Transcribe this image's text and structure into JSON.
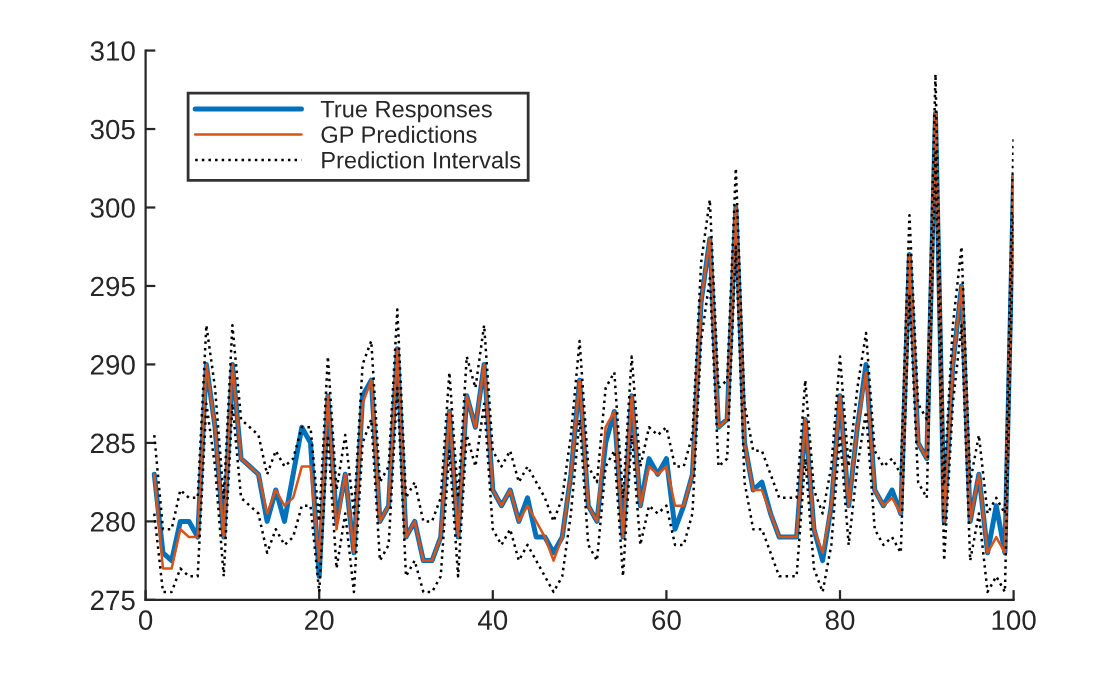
{
  "chart_data": {
    "type": "line",
    "x": [
      1,
      2,
      3,
      4,
      5,
      6,
      7,
      8,
      9,
      10,
      11,
      12,
      13,
      14,
      15,
      16,
      17,
      18,
      19,
      20,
      21,
      22,
      23,
      24,
      25,
      26,
      27,
      28,
      29,
      30,
      31,
      32,
      33,
      34,
      35,
      36,
      37,
      38,
      39,
      40,
      41,
      42,
      43,
      44,
      45,
      46,
      47,
      48,
      49,
      50,
      51,
      52,
      53,
      54,
      55,
      56,
      57,
      58,
      59,
      60,
      61,
      62,
      63,
      64,
      65,
      66,
      67,
      68,
      69,
      70,
      71,
      72,
      73,
      74,
      75,
      76,
      77,
      78,
      79,
      80,
      81,
      82,
      83,
      84,
      85,
      86,
      87,
      88,
      89,
      90,
      91,
      92,
      93,
      94,
      95,
      96,
      97,
      98,
      99,
      100
    ],
    "series": [
      {
        "name": "True Responses",
        "color": "#0072bd",
        "line_style": "solid",
        "values": [
          283,
          278,
          277.5,
          280,
          280,
          279,
          290,
          286,
          279,
          290,
          284,
          283.5,
          283,
          280,
          282,
          280,
          283,
          286,
          285,
          276.5,
          288,
          280,
          283,
          278,
          288,
          289,
          280,
          281,
          291,
          279,
          280,
          277.5,
          277.5,
          279,
          287,
          279,
          288,
          286,
          290,
          282,
          281,
          282,
          280,
          281.5,
          279,
          279,
          278,
          279,
          283,
          289,
          281,
          280,
          285,
          287,
          279,
          288,
          281,
          284,
          283,
          284,
          279.5,
          281,
          283,
          294,
          298,
          286,
          286.5,
          300,
          285,
          282,
          282.5,
          280.5,
          279,
          279,
          279,
          286.5,
          279.5,
          277.5,
          281,
          288,
          281,
          286,
          290,
          282,
          281,
          282,
          280.5,
          297,
          285,
          284,
          306,
          280,
          290,
          295,
          280,
          283,
          278,
          281,
          278,
          302
        ]
      },
      {
        "name": "GP Predictions",
        "color": "#d95319",
        "line_style": "solid",
        "values": [
          283,
          277,
          277,
          279.5,
          279,
          279,
          290,
          286,
          279,
          290,
          284,
          283.5,
          283,
          280.5,
          282,
          281,
          281.5,
          283.5,
          283.5,
          277.5,
          288,
          279.5,
          283,
          278,
          287.5,
          289,
          280,
          281,
          291,
          279,
          280,
          277.5,
          277.5,
          279,
          287,
          279,
          288,
          286,
          290,
          282,
          281,
          282,
          280,
          281,
          280,
          279,
          277.5,
          279,
          283,
          289,
          281,
          280,
          286,
          287,
          279,
          288,
          281,
          283.5,
          283,
          283.5,
          281,
          281,
          283,
          294,
          298,
          286,
          286.5,
          300,
          285,
          282,
          282,
          280.5,
          279,
          279,
          279,
          286.5,
          279.5,
          278,
          281,
          288,
          281,
          286,
          289.5,
          282,
          281,
          281.5,
          280.5,
          297,
          285,
          284,
          306,
          280,
          290,
          295,
          280,
          283,
          278,
          279,
          278,
          302
        ]
      },
      {
        "name": "Prediction Intervals",
        "color": "#000000",
        "line_style": "dotted",
        "values": [
          285.5,
          279.5,
          279.5,
          282,
          281.5,
          281.5,
          292.5,
          288.5,
          281.5,
          292.5,
          286.5,
          286,
          285.5,
          283,
          284.5,
          283.5,
          284,
          286,
          286,
          280,
          290.5,
          282,
          285.5,
          280.5,
          290,
          291.5,
          282.5,
          283.5,
          293.5,
          281.5,
          282.5,
          280,
          280,
          281.5,
          289.5,
          281.5,
          290.5,
          288.5,
          292.5,
          284.5,
          283.5,
          284.5,
          282.5,
          283.5,
          282.5,
          281.5,
          280,
          281.5,
          285.5,
          291.5,
          283.5,
          282.5,
          288.5,
          289.5,
          281.5,
          290.5,
          283.5,
          286,
          285.5,
          286,
          283.5,
          283.5,
          285.5,
          296.5,
          300.5,
          288.5,
          289,
          302.5,
          287.5,
          284.5,
          284.5,
          283,
          281.5,
          281.5,
          281.5,
          289,
          282,
          280.5,
          283.5,
          290.5,
          283.5,
          288.5,
          292,
          284.5,
          283.5,
          284,
          283,
          299.5,
          287.5,
          286.5,
          308.5,
          282.5,
          292.5,
          297.5,
          282.5,
          285.5,
          280.5,
          281.5,
          280.5,
          304.5
        ]
      },
      {
        "color": "#000000",
        "line_style": "dotted",
        "values": [
          280.5,
          275.5,
          275.5,
          277,
          276.5,
          276.5,
          287.5,
          283.5,
          276.5,
          287.5,
          281.5,
          281,
          280.5,
          278,
          279.5,
          278.5,
          279,
          281,
          281,
          275.5,
          285.5,
          277,
          280.5,
          275.5,
          285,
          286.5,
          277.5,
          278.5,
          288.5,
          276.5,
          277.5,
          275.5,
          275.5,
          276.5,
          284.5,
          276.5,
          285.5,
          283.5,
          287.5,
          279.5,
          278.5,
          279.5,
          277.5,
          278.5,
          277.5,
          276.5,
          275.5,
          276.5,
          280.5,
          286.5,
          278.5,
          277.5,
          283.5,
          284.5,
          276.5,
          285.5,
          278.5,
          281,
          280.5,
          281,
          278.5,
          278.5,
          280.5,
          291.5,
          295.5,
          283.5,
          284,
          297.5,
          282.5,
          279.5,
          279.5,
          278,
          276.5,
          276.5,
          276.5,
          284,
          277,
          275.5,
          278.5,
          285.5,
          278.5,
          283.5,
          287,
          279.5,
          278.5,
          279,
          278,
          294.5,
          282.5,
          281.5,
          303.5,
          277.5,
          287.5,
          292.5,
          277.5,
          280.5,
          275.5,
          276.5,
          275.5,
          299.5
        ]
      }
    ],
    "xlim": [
      0,
      100
    ],
    "xticks": [
      0,
      20,
      40,
      60,
      80,
      100
    ],
    "ylim": [
      275,
      310
    ],
    "yticks": [
      275,
      280,
      285,
      290,
      295,
      300,
      305,
      310
    ],
    "grid": false,
    "legend": "top left"
  }
}
